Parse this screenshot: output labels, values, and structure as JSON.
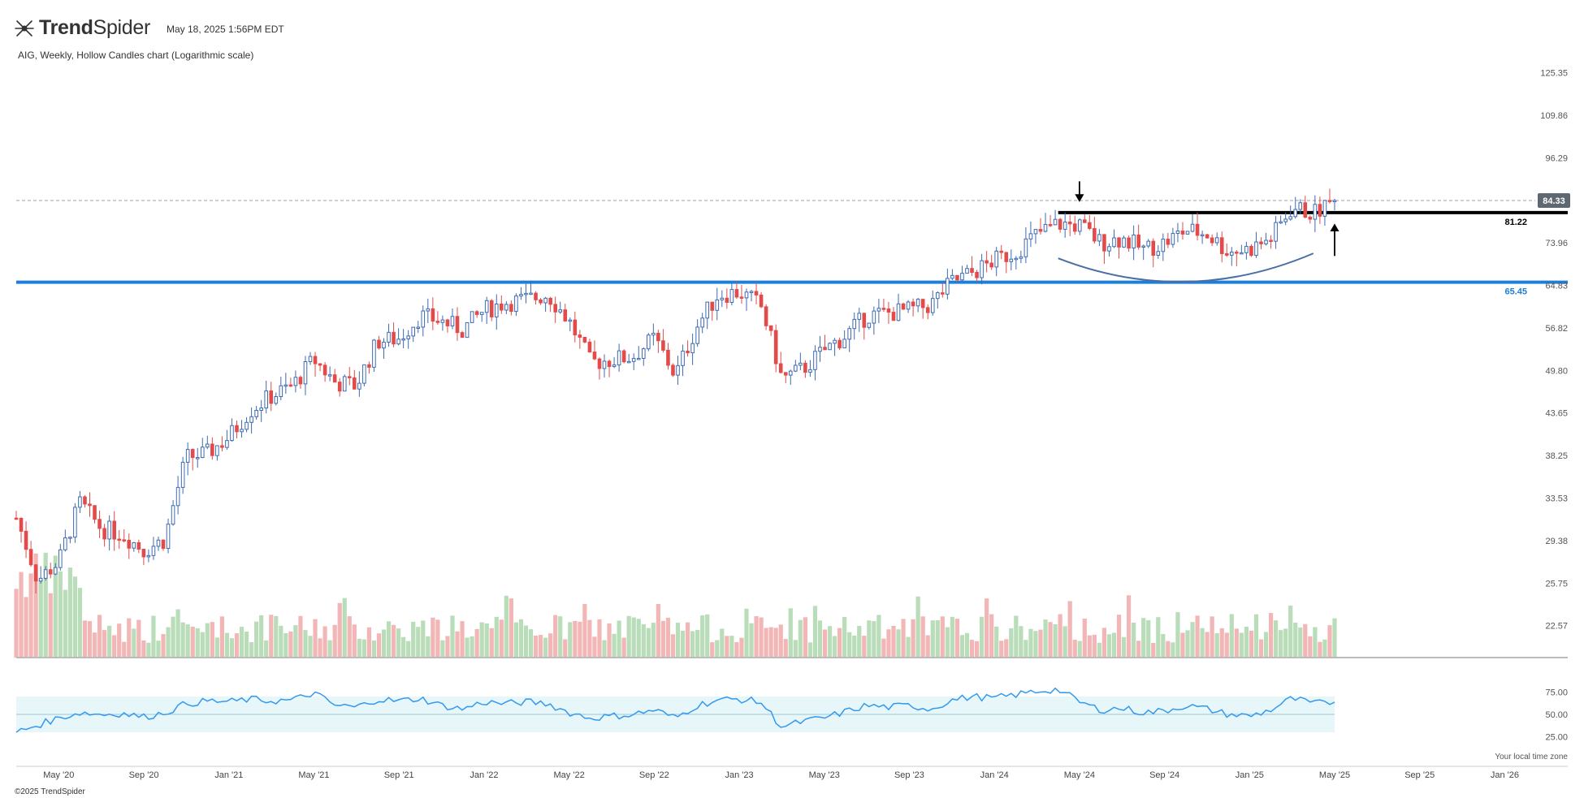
{
  "header": {
    "logo_text_bold": "Trend",
    "logo_text_light": "Spider",
    "timestamp": "May 18, 2025 1:56PM EDT",
    "subtitle": "AIG, Weekly, Hollow Candles chart (Logarithmic scale)"
  },
  "footer": {
    "copyright": "©2025 TrendSpider",
    "timezone_note": "Your local time zone"
  },
  "colors": {
    "up": "#3d6bb3",
    "down": "#e34b4b",
    "vol_up": "#b9dcb9",
    "vol_down": "#f2b6b6",
    "support_line": "#1e7fd8",
    "resistance_line": "#000000",
    "rsi_line": "#3399ee",
    "rsi_band": "#e6f6f9",
    "cup_arc": "#4a6fa5"
  },
  "chart_data": {
    "type": "candlestick",
    "title": "AIG, Weekly, Hollow Candles chart (Logarithmic scale)",
    "scale": "logarithmic",
    "ylim": [
      21.5,
      130
    ],
    "y_ticks": [
      "125.35",
      "109.86",
      "96.29",
      "84.33",
      "73.96",
      "64.83",
      "56.82",
      "49.80",
      "43.65",
      "38.25",
      "33.53",
      "29.38",
      "25.75",
      "22.57"
    ],
    "x_ticks": [
      "May '20",
      "Sep '20",
      "Jan '21",
      "May '21",
      "Sep '21",
      "Jan '22",
      "May '22",
      "Sep '22",
      "Jan '23",
      "May '23",
      "Sep '23",
      "Jan '24",
      "May '24",
      "Sep '24",
      "Jan '25",
      "May '25",
      "Sep '25",
      "Jan '26"
    ],
    "last_price": 84.33,
    "levels": [
      {
        "value": 81.22,
        "label": "81.22",
        "type": "resistance",
        "from": "Apr '24"
      },
      {
        "value": 65.45,
        "label": "65.45",
        "type": "support",
        "from": "Mar '20"
      }
    ],
    "close_path": [
      [
        "Mar '20",
        31.5
      ],
      [
        "Apr '20",
        26.0
      ],
      [
        "May '20",
        27.5
      ],
      [
        "Jun '20",
        33.0
      ],
      [
        "Jul '20",
        30.5
      ],
      [
        "Aug '20",
        30.0
      ],
      [
        "Sep '20",
        28.5
      ],
      [
        "Oct '20",
        29.5
      ],
      [
        "Nov '20",
        38.0
      ],
      [
        "Dec '20",
        38.5
      ],
      [
        "Jan '21",
        40.5
      ],
      [
        "Feb '21",
        44.0
      ],
      [
        "Mar '21",
        46.0
      ],
      [
        "Apr '21",
        47.5
      ],
      [
        "May '21",
        51.5
      ],
      [
        "Jun '21",
        48.0
      ],
      [
        "Jul '21",
        47.5
      ],
      [
        "Aug '21",
        54.5
      ],
      [
        "Sep '21",
        55.0
      ],
      [
        "Oct '21",
        59.0
      ],
      [
        "Nov '21",
        58.0
      ],
      [
        "Dec '21",
        56.5
      ],
      [
        "Jan '22",
        60.0
      ],
      [
        "Feb '22",
        61.5
      ],
      [
        "Mar '22",
        62.0
      ],
      [
        "Apr '22",
        63.0
      ],
      [
        "May '22",
        58.0
      ],
      [
        "Jun '22",
        51.0
      ],
      [
        "Jul '22",
        51.5
      ],
      [
        "Aug '22",
        52.0
      ],
      [
        "Sep '22",
        55.0
      ],
      [
        "Oct '22",
        49.0
      ],
      [
        "Nov '22",
        57.0
      ],
      [
        "Dec '22",
        63.0
      ],
      [
        "Jan '23",
        63.5
      ],
      [
        "Feb '23",
        61.0
      ],
      [
        "Mar '23",
        48.5
      ],
      [
        "Apr '23",
        50.0
      ],
      [
        "May '23",
        53.0
      ],
      [
        "Jun '23",
        55.5
      ],
      [
        "Jul '23",
        59.0
      ],
      [
        "Aug '23",
        59.5
      ],
      [
        "Sep '23",
        60.0
      ],
      [
        "Oct '23",
        61.0
      ],
      [
        "Nov '23",
        65.5
      ],
      [
        "Dec '23",
        67.5
      ],
      [
        "Jan '24",
        70.0
      ],
      [
        "Feb '24",
        72.0
      ],
      [
        "Mar '24",
        76.0
      ],
      [
        "Apr '24",
        78.5
      ],
      [
        "May '24",
        78.0
      ],
      [
        "Jun '24",
        74.0
      ],
      [
        "Jul '24",
        75.0
      ],
      [
        "Aug '24",
        72.5
      ],
      [
        "Sep '24",
        74.0
      ],
      [
        "Oct '24",
        77.0
      ],
      [
        "Nov '24",
        76.0
      ],
      [
        "Dec '24",
        72.0
      ],
      [
        "Jan '25",
        72.5
      ],
      [
        "Feb '25",
        75.0
      ],
      [
        "Mar '25",
        82.5
      ],
      [
        "Apr '25",
        81.0
      ],
      [
        "May '25",
        84.33
      ]
    ],
    "rsi": {
      "name": "RSI",
      "ticks": [
        "75.00",
        "50.00",
        "25.00"
      ],
      "band": [
        30,
        70
      ],
      "midline": 50,
      "path": [
        [
          "Mar '20",
          30
        ],
        [
          "Apr '20",
          38
        ],
        [
          "May '20",
          46
        ],
        [
          "Jun '20",
          52
        ],
        [
          "Jul '20",
          50
        ],
        [
          "Aug '20",
          51
        ],
        [
          "Sep '20",
          47
        ],
        [
          "Oct '20",
          52
        ],
        [
          "Nov '20",
          62
        ],
        [
          "Dec '20",
          65
        ],
        [
          "Jan '21",
          64
        ],
        [
          "Feb '21",
          67
        ],
        [
          "Mar '21",
          65
        ],
        [
          "Apr '21",
          66
        ],
        [
          "May '21",
          74
        ],
        [
          "Jun '21",
          60
        ],
        [
          "Jul '21",
          58
        ],
        [
          "Aug '21",
          67
        ],
        [
          "Sep '21",
          65
        ],
        [
          "Oct '21",
          68
        ],
        [
          "Nov '21",
          60
        ],
        [
          "Dec '21",
          56
        ],
        [
          "Jan '22",
          64
        ],
        [
          "Feb '22",
          62
        ],
        [
          "Mar '22",
          64
        ],
        [
          "Apr '22",
          62
        ],
        [
          "May '22",
          52
        ],
        [
          "Jun '22",
          46
        ],
        [
          "Jul '22",
          48
        ],
        [
          "Aug '22",
          50
        ],
        [
          "Sep '22",
          55
        ],
        [
          "Oct '22",
          46
        ],
        [
          "Nov '22",
          60
        ],
        [
          "Dec '22",
          66
        ],
        [
          "Jan '23",
          67
        ],
        [
          "Feb '23",
          64
        ],
        [
          "Mar '23",
          36
        ],
        [
          "Apr '23",
          42
        ],
        [
          "May '23",
          46
        ],
        [
          "Jun '23",
          53
        ],
        [
          "Jul '23",
          60
        ],
        [
          "Aug '23",
          58
        ],
        [
          "Sep '23",
          60
        ],
        [
          "Oct '23",
          56
        ],
        [
          "Nov '23",
          66
        ],
        [
          "Dec '23",
          70
        ],
        [
          "Jan '24",
          68
        ],
        [
          "Feb '24",
          72
        ],
        [
          "Mar '24",
          76
        ],
        [
          "Apr '24",
          78
        ],
        [
          "May '24",
          64
        ],
        [
          "Jun '24",
          55
        ],
        [
          "Jul '24",
          57
        ],
        [
          "Aug '24",
          52
        ],
        [
          "Sep '24",
          54
        ],
        [
          "Oct '24",
          60
        ],
        [
          "Nov '24",
          56
        ],
        [
          "Dec '24",
          50
        ],
        [
          "Jan '25",
          48
        ],
        [
          "Feb '25",
          55
        ],
        [
          "Mar '25",
          68
        ],
        [
          "Apr '25",
          62
        ],
        [
          "May '25",
          64
        ]
      ]
    }
  }
}
